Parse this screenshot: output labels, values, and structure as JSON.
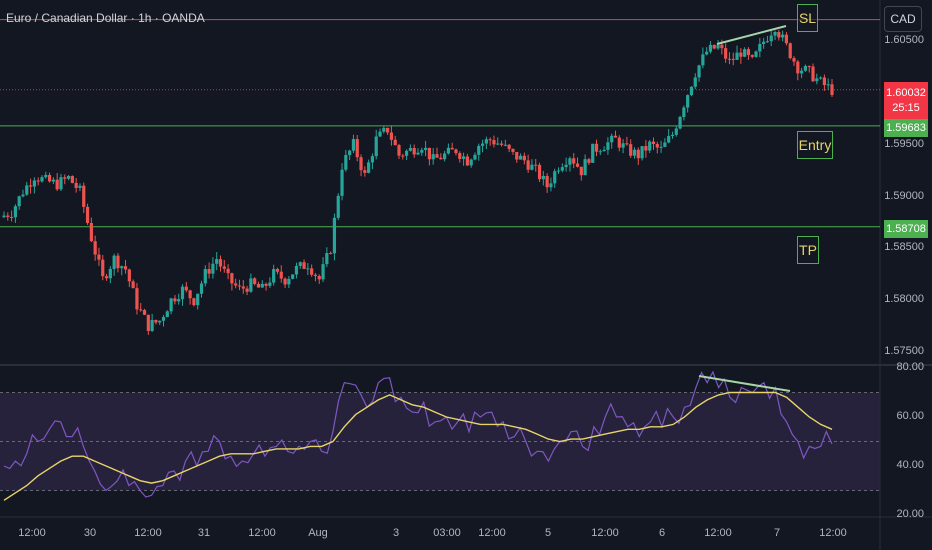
{
  "header": {
    "title": "Euro / Canadian Dollar · 1h · OANDA",
    "currency_button": "CAD"
  },
  "colors": {
    "background": "#131722",
    "up": "#26a69a",
    "down": "#ef5350",
    "sl_line": "#c0504d",
    "level_line": "#4caf50",
    "rsi_line": "#7e57c2",
    "rsi_ma": "#e8d46a",
    "rsi_band": "#2a2540",
    "trendline": "#a5d6a7",
    "annotation_text": "#e8d46a"
  },
  "annotations": {
    "sl": "SL",
    "entry": "Entry",
    "tp": "TP"
  },
  "price_tags": {
    "current_price": "1.60032",
    "countdown": "25:15",
    "entry_price": "1.59683",
    "tp_price": "1.58708"
  },
  "chart_data": [
    {
      "type": "candlestick",
      "title": "Euro / Canadian Dollar · 1h · OANDA",
      "y_ticks": [
        "1.60500",
        "1.59500",
        "1.59000",
        "1.58500",
        "1.58000",
        "1.57500"
      ],
      "ylim": [
        1.574,
        1.609
      ],
      "x_ticks": [
        "12:00",
        "30",
        "12:00",
        "31",
        "12:00",
        "Aug",
        "3",
        "03:00",
        "12:00",
        "5",
        "12:00",
        "6",
        "12:00",
        "7",
        "12:00"
      ],
      "grid": false,
      "levels": [
        {
          "name": "SL",
          "value": 1.6071
        },
        {
          "name": "Entry",
          "value": 1.59683
        },
        {
          "name": "TP",
          "value": 1.58708
        },
        {
          "name": "Current",
          "value": 1.60032
        }
      ],
      "close_path": [
        1.588,
        1.5885,
        1.5905,
        1.592,
        1.5915,
        1.5912,
        1.5918,
        1.5905,
        1.586,
        1.582,
        1.584,
        1.583,
        1.5795,
        1.5775,
        1.578,
        1.58,
        1.581,
        1.58,
        1.5825,
        1.584,
        1.582,
        1.581,
        1.5815,
        1.581,
        1.5825,
        1.582,
        1.583,
        1.5835,
        1.582,
        1.585,
        1.593,
        1.595,
        1.592,
        1.5955,
        1.5965,
        1.594,
        1.5945,
        1.595,
        1.5935,
        1.594,
        1.5945,
        1.5935,
        1.595,
        1.5955,
        1.595,
        1.594,
        1.5935,
        1.5925,
        1.591,
        1.593,
        1.594,
        1.5925,
        1.5945,
        1.595,
        1.5955,
        1.5945,
        1.594,
        1.595,
        1.5945,
        1.596,
        1.599,
        1.602,
        1.604,
        1.6045,
        1.603,
        1.604,
        1.603,
        1.605,
        1.6065,
        1.6045,
        1.6025,
        1.602,
        1.601,
        1.6003
      ]
    },
    {
      "type": "line",
      "title": "",
      "y_ticks": [
        "80.00",
        "60.00",
        "40.00",
        "20.00"
      ],
      "ylim": [
        20,
        80
      ],
      "bands": [
        30,
        50,
        70
      ],
      "series": [
        {
          "values": [
            40,
            42,
            45,
            50,
            55,
            58,
            52,
            48,
            38,
            30,
            34,
            32,
            30,
            28,
            32,
            38,
            42,
            40,
            46,
            50,
            44,
            42,
            45,
            44,
            48,
            46,
            48,
            50,
            46,
            54,
            74,
            73,
            64,
            74,
            76,
            68,
            62,
            66,
            58,
            60,
            58,
            54,
            60,
            62,
            58,
            52,
            50,
            46,
            42,
            50,
            54,
            48,
            56,
            60,
            60,
            56,
            52,
            58,
            56,
            60,
            64,
            72,
            74,
            72,
            68,
            72,
            70,
            74,
            72,
            58,
            50,
            48,
            48,
            49
          ]
        },
        {
          "values": [
            26,
            29,
            32,
            36,
            39,
            42,
            44,
            44,
            42,
            40,
            38,
            36,
            34,
            33,
            34,
            36,
            38,
            40,
            42,
            44,
            45,
            45,
            45,
            46,
            47,
            47,
            47,
            48,
            48,
            50,
            56,
            61,
            64,
            67,
            69,
            67,
            65,
            64,
            62,
            60,
            59,
            58,
            57,
            57,
            57,
            56,
            55,
            53,
            51,
            50,
            51,
            51,
            52,
            53,
            54,
            55,
            55,
            56,
            56,
            57,
            60,
            64,
            67,
            69,
            70,
            70,
            70,
            70,
            70,
            68,
            64,
            60,
            57,
            55
          ]
        }
      ]
    }
  ]
}
